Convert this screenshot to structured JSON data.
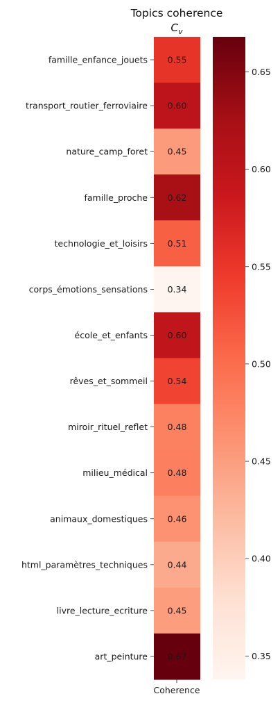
{
  "chart_data": {
    "type": "heatmap",
    "title": "Topics coherence",
    "subtitle_main": "C",
    "subtitle_sub": "v",
    "columns": [
      "Coherence"
    ],
    "rows": [
      "famille_enfance_jouets",
      "transport_routier_ferroviaire",
      "nature_camp_foret",
      "famille_proche",
      "technologie_et_loisirs",
      "corps_émotions_sensations",
      "école_et_enfants",
      "rêves_et_sommeil",
      "miroir_rituel_reflet",
      "milieu_médical",
      "animaux_domestiques",
      "html_paramètres_techniques",
      "livre_lecture_ecriture",
      "art_peinture"
    ],
    "values": [
      0.553,
      0.602,
      0.453,
      0.622,
      0.512,
      0.338,
      0.598,
      0.537,
      0.479,
      0.481,
      0.462,
      0.438,
      0.451,
      0.668
    ],
    "annotations": [
      "0.55",
      "0.60",
      "0.45",
      "0.62",
      "0.51",
      "0.34",
      "0.60",
      "0.54",
      "0.48",
      "0.48",
      "0.46",
      "0.44",
      "0.45",
      "0.67"
    ],
    "colormap": "Reds",
    "colorbar": {
      "range": [
        0.338,
        0.668
      ],
      "ticks": [
        0.35,
        0.4,
        0.45,
        0.5,
        0.55,
        0.6,
        0.65
      ],
      "tick_labels": [
        "0.35",
        "0.40",
        "0.45",
        "0.50",
        "0.55",
        "0.60",
        "0.65"
      ]
    }
  }
}
